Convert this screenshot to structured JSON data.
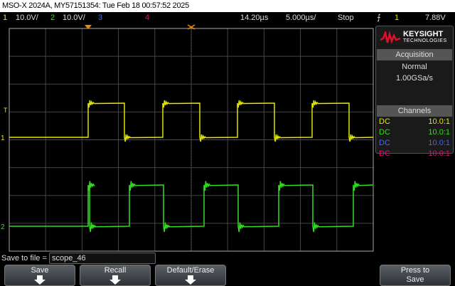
{
  "title": "MSO-X 2024A, MY57151354: Tue Feb 18 00:57:52 2025",
  "status": {
    "ch1_num": "1",
    "ch1_scale": "10.0V/",
    "ch2_num": "2",
    "ch2_scale": "10.0V/",
    "ch3_num": "3",
    "ch4_num": "4",
    "delay": "14.20µs",
    "timebase": "5.000µs/",
    "run_state": "Stop",
    "trigger_icon": "rising-edge-icon",
    "trigger_source": "1",
    "trigger_level": "7.88V"
  },
  "colors": {
    "ch1": "#e6e600",
    "ch2": "#33dd22",
    "ch3": "#4466ee",
    "ch4": "#dd1177"
  },
  "brand": {
    "name": "KEYSIGHT",
    "sub": "TECHNOLOGIES"
  },
  "acquisition": {
    "header": "Acquisition",
    "mode": "Normal",
    "rate": "1.00GSa/s"
  },
  "channels": {
    "header": "Channels",
    "rows": [
      {
        "coupling": "DC",
        "probe": "10.0:1"
      },
      {
        "coupling": "DC",
        "probe": "10.0:1"
      },
      {
        "coupling": "DC",
        "probe": "10.0:1"
      },
      {
        "coupling": "DC",
        "probe": "10.0:1"
      }
    ]
  },
  "save": {
    "label": "Save to file =",
    "filename": "scope_46"
  },
  "softkeys": {
    "save": "Save",
    "recall": "Recall",
    "default_erase": "Default/Erase",
    "press1": "Press to",
    "press2": "Save"
  }
}
